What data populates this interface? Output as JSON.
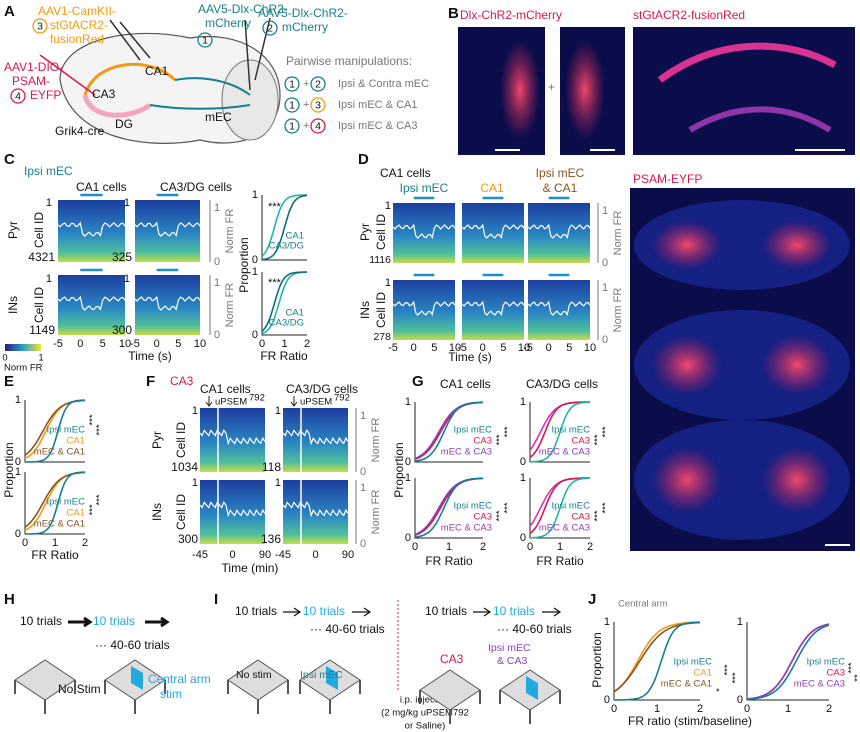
{
  "panel_labels": [
    "A",
    "B",
    "C",
    "D",
    "E",
    "F",
    "G",
    "H",
    "I",
    "J"
  ],
  "circles": [
    "1",
    "2",
    "3",
    "4"
  ],
  "stars": [
    "*",
    "**",
    "***"
  ],
  "ticks": {
    "time_s": [
      "-5",
      "0",
      "5",
      "10"
    ],
    "time_min": [
      "-45",
      "0",
      "90"
    ],
    "ratio": [
      "0",
      "1",
      "2"
    ],
    "prop": [
      "0",
      "1"
    ]
  },
  "common": {
    "cell_id": "Cell ID",
    "pyr": "Pyr",
    "ins": "INs",
    "norm_fr": "Norm FR",
    "proportion": "Proportion",
    "fr_ratio": "FR Ratio",
    "first": "1"
  },
  "A": {
    "camkii": [
      "AAV1-CamKII-",
      "stGtACR2-",
      "fusionRed"
    ],
    "dlx1": [
      "AAV5-Dlx-ChR2-",
      "mCherry"
    ],
    "dlx2": [
      "AAV5-Dlx-ChR2-",
      "mCherry"
    ],
    "dio": [
      "AAV1-DIO-",
      "PSAM-",
      "EYFP"
    ],
    "regions": [
      "CA1",
      "CA3",
      "DG",
      "mEC"
    ],
    "mouse": "Grik4-cre",
    "pairwise_title": "Pairwise manipulations:",
    "plus": "+",
    "pairs": [
      "Ipsi & Contra mEC",
      "Ipsi mEC & CA1",
      "Ipsi mEC & CA3"
    ]
  },
  "B": {
    "left_title": "Dlx-ChR2-mCherry",
    "right_title": "stGtACR2-fusionRed",
    "plus": "+"
  },
  "C": {
    "condition": "Ipsi mEC",
    "columns": [
      "CA1 cells",
      "CA3/DG cells"
    ],
    "counts_pyr": [
      "4321",
      "325"
    ],
    "counts_ins": [
      "1149",
      "300"
    ],
    "time": "Time (s)",
    "legend": [
      "CA1",
      "CA3/DG"
    ],
    "colorbar": [
      "0",
      "1"
    ],
    "colorbar_label": "Norm FR"
  },
  "D": {
    "title": "CA1 cells",
    "columns": [
      "Ipsi mEC",
      "CA1"
    ],
    "column3": [
      "Ipsi mEC",
      "& CA1"
    ],
    "counts": [
      "1116",
      "278"
    ],
    "time": "Time (s)"
  },
  "PSAM": {
    "title": "PSAM-EYFP"
  },
  "E": {
    "legend": [
      "Ipsi mEC",
      "CA1",
      "mEC & CA1"
    ]
  },
  "F": {
    "condition": "CA3",
    "columns": [
      "CA1 cells",
      "CA3/DG cells"
    ],
    "drug": "uPSEM",
    "drug_sup": "792",
    "counts_pyr": [
      "1034",
      "118"
    ],
    "counts_ins": [
      "300",
      "136"
    ],
    "time": "Time (min)"
  },
  "G": {
    "columns": [
      "CA1 cells",
      "CA3/DG cells"
    ],
    "legend": [
      "Ipsi mEC",
      "CA3",
      "mEC & CA3"
    ]
  },
  "H": {
    "trials": "10 trials",
    "stim_trials": "10 trials",
    "more": "··· 40-60 trials",
    "no_stim": "No Stim",
    "stim": [
      "Central arm",
      "stim"
    ]
  },
  "I": {
    "trials": "10 trials",
    "stim_trials": "10 trials",
    "more": "··· 40-60 trials",
    "no_stim": "No stim",
    "ipsi": "Ipsi mEC",
    "ca3": "CA3",
    "combo": [
      "Ipsi mEC",
      "& CA3"
    ],
    "injection": [
      "i.p. injection",
      "(2 mg/kg uPSEM792",
      "or Saline)"
    ]
  },
  "J": {
    "title": "Central arm",
    "legend1": [
      "Ipsi mEC",
      "CA1",
      "mEC & CA1"
    ],
    "legend2": [
      "Ipsi mEC",
      "CA3",
      "mEC & CA3"
    ],
    "xlabel": "FR ratio (stim/baseline)"
  }
}
